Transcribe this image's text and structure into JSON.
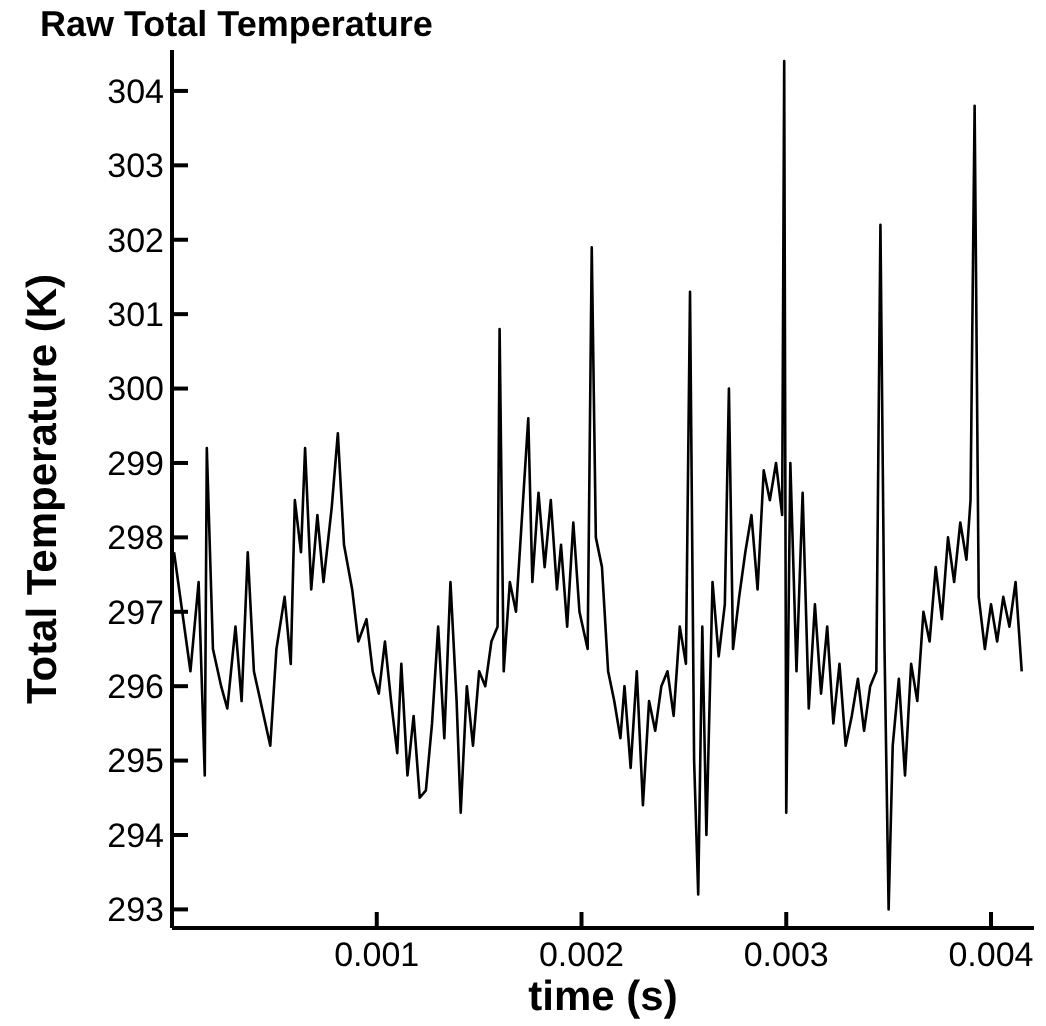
{
  "chart_data": {
    "type": "line",
    "title": "Raw Total Temperature",
    "xlabel": "time (s)",
    "ylabel": "Total Temperature (K)",
    "xlim": [
      0,
      0.00421
    ],
    "ylim": [
      292.75,
      304.55
    ],
    "xticks": [
      0.001,
      0.002,
      0.003,
      0.004
    ],
    "yticks": [
      293,
      294,
      295,
      296,
      297,
      298,
      299,
      300,
      301,
      302,
      303,
      304
    ],
    "marker": "none",
    "line_style": "solid",
    "series": [
      {
        "color": "#000000",
        "x": [
          1e-05,
          5e-05,
          9e-05,
          0.00013,
          0.00016,
          0.00017,
          0.0002,
          0.00024,
          0.00027,
          0.00031,
          0.00034,
          0.00037,
          0.0004,
          0.00044,
          0.00048,
          0.00051,
          0.00055,
          0.00058,
          0.0006,
          0.00063,
          0.00065,
          0.00068,
          0.00071,
          0.00074,
          0.00078,
          0.00081,
          0.00084,
          0.00088,
          0.00091,
          0.00095,
          0.00098,
          0.00101,
          0.00104,
          0.00107,
          0.0011,
          0.00112,
          0.00115,
          0.00118,
          0.00121,
          0.00124,
          0.00127,
          0.0013,
          0.00133,
          0.00136,
          0.00139,
          0.00141,
          0.00144,
          0.00147,
          0.0015,
          0.00153,
          0.00156,
          0.00159,
          0.0016,
          0.00162,
          0.00165,
          0.00168,
          0.00171,
          0.00174,
          0.00176,
          0.00179,
          0.00182,
          0.00185,
          0.00188,
          0.0019,
          0.00193,
          0.00196,
          0.00199,
          0.00203,
          0.00205,
          0.00207,
          0.0021,
          0.00213,
          0.00216,
          0.00219,
          0.00221,
          0.00224,
          0.00227,
          0.0023,
          0.00233,
          0.00236,
          0.00239,
          0.00242,
          0.00245,
          0.00248,
          0.00251,
          0.00253,
          0.00255,
          0.00257,
          0.00259,
          0.00261,
          0.00264,
          0.00267,
          0.0027,
          0.00272,
          0.00274,
          0.00277,
          0.0028,
          0.00283,
          0.00286,
          0.00289,
          0.00292,
          0.00295,
          0.00298,
          0.00299,
          0.003,
          0.00302,
          0.00305,
          0.00308,
          0.00311,
          0.00314,
          0.00317,
          0.0032,
          0.00323,
          0.00326,
          0.00329,
          0.00332,
          0.00335,
          0.00338,
          0.00341,
          0.00344,
          0.00346,
          0.00348,
          0.0035,
          0.00352,
          0.00355,
          0.00358,
          0.00361,
          0.00364,
          0.00367,
          0.0037,
          0.00373,
          0.00376,
          0.00379,
          0.00382,
          0.00385,
          0.00388,
          0.0039,
          0.00392,
          0.00394,
          0.00397,
          0.004,
          0.00403,
          0.00406,
          0.00409,
          0.00412,
          0.00415
        ],
        "values": [
          297.8,
          297.0,
          296.2,
          297.4,
          294.8,
          299.2,
          296.5,
          296.0,
          295.7,
          296.8,
          295.8,
          297.8,
          296.2,
          295.7,
          295.2,
          296.5,
          297.2,
          296.3,
          298.5,
          297.8,
          299.2,
          297.3,
          298.3,
          297.4,
          298.4,
          299.4,
          297.9,
          297.3,
          296.6,
          296.9,
          296.2,
          295.9,
          296.6,
          295.8,
          295.1,
          296.3,
          294.8,
          295.6,
          294.5,
          294.6,
          295.5,
          296.8,
          295.3,
          297.4,
          295.8,
          294.3,
          296.0,
          295.2,
          296.2,
          296.0,
          296.6,
          296.8,
          300.8,
          296.2,
          297.4,
          297.0,
          298.3,
          299.6,
          297.4,
          298.6,
          297.6,
          298.5,
          297.3,
          297.9,
          296.8,
          298.2,
          297.0,
          296.5,
          301.9,
          298.0,
          297.6,
          296.2,
          295.8,
          295.3,
          296.0,
          294.9,
          296.2,
          294.4,
          295.8,
          295.4,
          296.0,
          296.2,
          295.6,
          296.8,
          296.3,
          301.3,
          295.0,
          293.2,
          296.8,
          294.0,
          297.4,
          296.4,
          297.1,
          300.0,
          296.5,
          297.2,
          297.8,
          298.3,
          297.3,
          298.9,
          298.5,
          299.0,
          298.3,
          304.4,
          294.3,
          299.0,
          296.2,
          298.6,
          295.7,
          297.1,
          295.9,
          296.8,
          295.5,
          296.3,
          295.2,
          295.6,
          296.1,
          295.4,
          296.0,
          296.2,
          302.2,
          296.5,
          293.0,
          295.2,
          296.1,
          294.8,
          296.3,
          295.8,
          297.0,
          296.6,
          297.6,
          296.9,
          298.0,
          297.4,
          298.2,
          297.7,
          298.5,
          303.8,
          297.2,
          296.5,
          297.1,
          296.6,
          297.2,
          296.8,
          297.4,
          296.2
        ]
      }
    ]
  }
}
